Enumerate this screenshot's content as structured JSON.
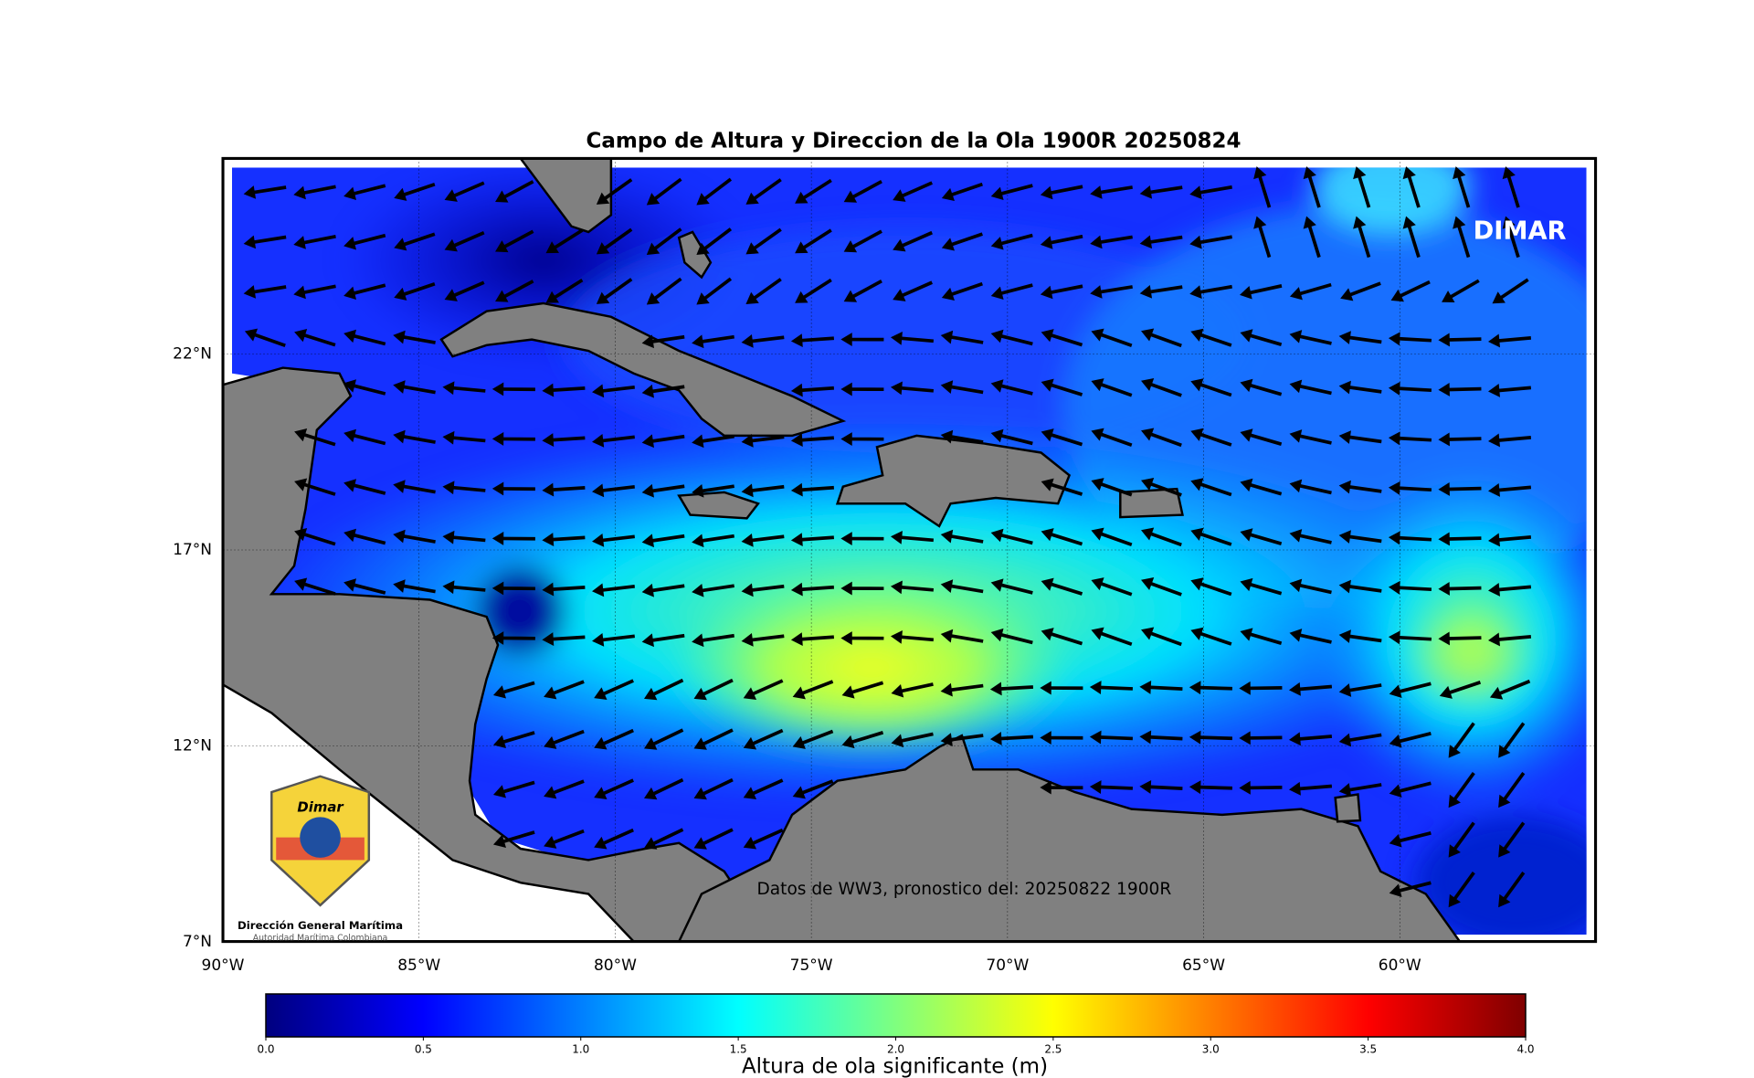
{
  "map": {
    "title": "Campo de Altura y Direccion de la Ola 1900R 20250824",
    "brand": "DIMAR",
    "source_note": "Datos de WW3, pronostico del: 20250822 1900R",
    "lonlim": [
      -90,
      -55
    ],
    "latlim": [
      7,
      27
    ],
    "lon_ticks": [
      {
        "value": -90,
        "label": "90°W"
      },
      {
        "value": -85,
        "label": "85°W"
      },
      {
        "value": -80,
        "label": "80°W"
      },
      {
        "value": -75,
        "label": "75°W"
      },
      {
        "value": -70,
        "label": "70°W"
      },
      {
        "value": -65,
        "label": "65°W"
      },
      {
        "value": -60,
        "label": "60°W"
      }
    ],
    "lat_ticks": [
      {
        "value": 7,
        "label": "7°N"
      },
      {
        "value": 12,
        "label": "12°N"
      },
      {
        "value": 17,
        "label": "17°N"
      },
      {
        "value": 22,
        "label": "22°N"
      }
    ],
    "logo": {
      "name": "Dimar",
      "org": "Dirección General Marítima",
      "tagline": "Autoridad Marítima Colombiana"
    }
  },
  "colorbar": {
    "label": "Altura de ola significante (m)",
    "lim": [
      0,
      4
    ],
    "colors": [
      "#00007f",
      "#0000ff",
      "#007fff",
      "#00ffff",
      "#7fff7f",
      "#ffff00",
      "#ff7f00",
      "#ff0000",
      "#7f0000"
    ],
    "ticks": [
      {
        "value": 0,
        "label": "0.0"
      },
      {
        "value": 0.5,
        "label": "0.5"
      },
      {
        "value": 1,
        "label": "1.0"
      },
      {
        "value": 1.5,
        "label": "1.5"
      },
      {
        "value": 2,
        "label": "2.0"
      },
      {
        "value": 2.5,
        "label": "2.5"
      },
      {
        "value": 3,
        "label": "3.0"
      },
      {
        "value": 3.5,
        "label": "3.5"
      },
      {
        "value": 4,
        "label": "4.0"
      }
    ]
  }
}
